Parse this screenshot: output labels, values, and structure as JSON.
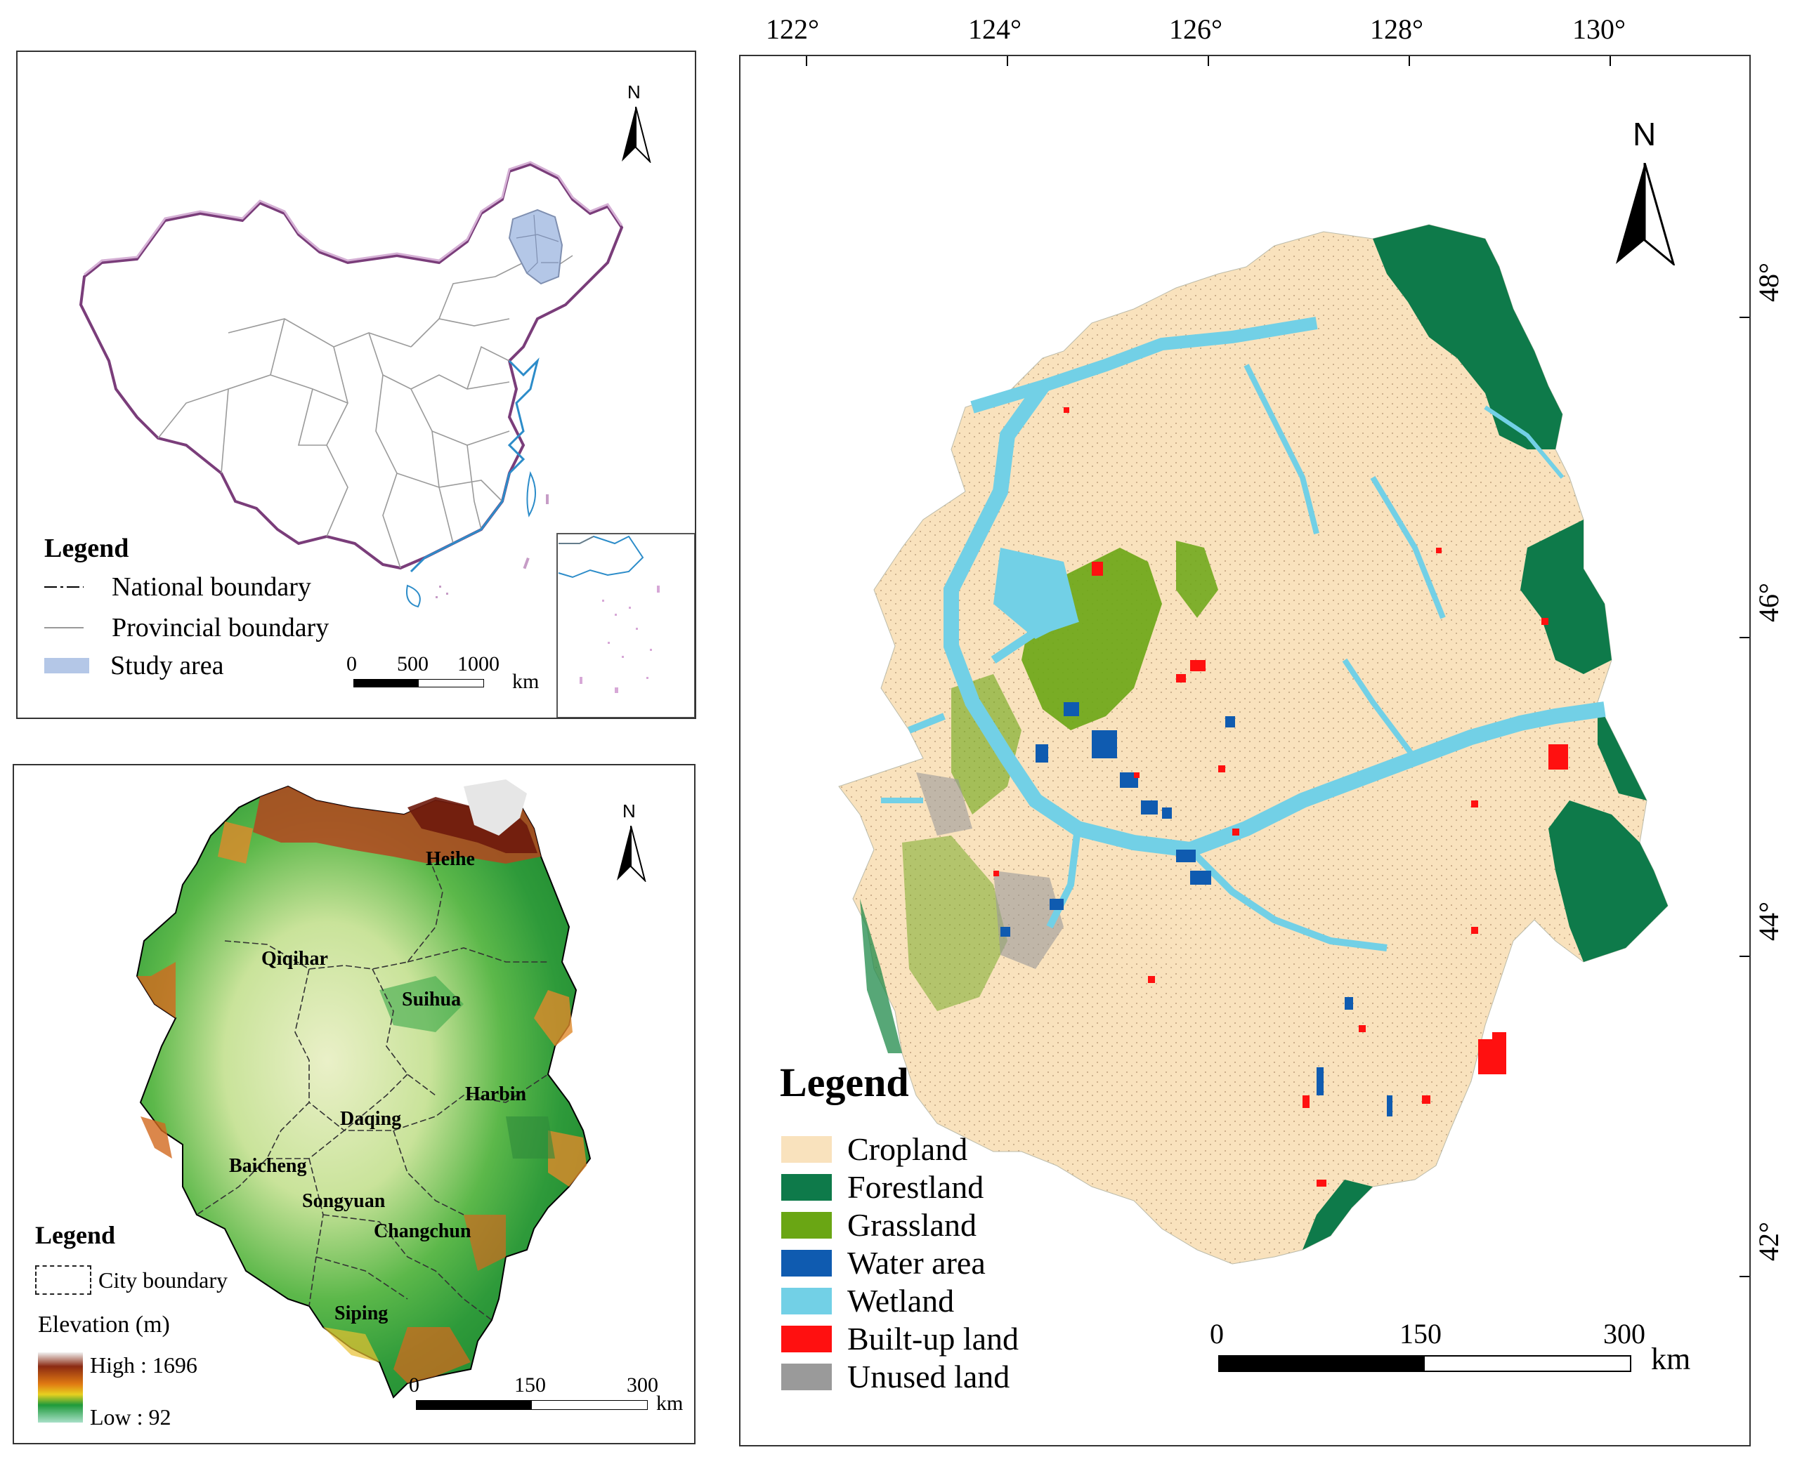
{
  "china_map": {
    "north": "N",
    "legend": {
      "title": "Legend",
      "items": [
        "National boundary",
        "Provincial boundary",
        "Study area"
      ]
    },
    "scale": {
      "ticks": [
        "0",
        "500",
        "1000"
      ],
      "unit": "km"
    },
    "colors": {
      "national": "#6b3a6b",
      "provincial": "#9a9a9a",
      "study_area": "#b4c7e7",
      "coast": "#2c8cc9"
    }
  },
  "elevation_map": {
    "north": "N",
    "cities": [
      "Heihe",
      "Qiqihar",
      "Suihua",
      "Harbin",
      "Daqing",
      "Baicheng",
      "Songyuan",
      "Changchun",
      "Siping"
    ],
    "legend": {
      "title": "Legend",
      "city_boundary": "City boundary",
      "elevation_title": "Elevation (m)",
      "high": "High : 1696",
      "low": "Low : 92"
    },
    "scale": {
      "ticks": [
        "0",
        "150",
        "300"
      ],
      "unit": "km"
    }
  },
  "landuse_map": {
    "north": "N",
    "lon_labels": [
      "122°",
      "124°",
      "126°",
      "128°",
      "130°"
    ],
    "lat_labels": [
      "48°",
      "46°",
      "44°",
      "42°"
    ],
    "legend": {
      "title": "Legend",
      "items": [
        {
          "label": "Cropland",
          "color": "#f9e2bd"
        },
        {
          "label": "Forestland",
          "color": "#0e7a4a"
        },
        {
          "label": "Grassland",
          "color": "#6aa614"
        },
        {
          "label": "Water area",
          "color": "#0f5bb0"
        },
        {
          "label": "Wetland",
          "color": "#72d0e6"
        },
        {
          "label": "Built-up land",
          "color": "#ff1010"
        },
        {
          "label": "Unused land",
          "color": "#9a9a9a"
        }
      ]
    },
    "scale": {
      "ticks": [
        "0",
        "150",
        "300"
      ],
      "unit": "km"
    }
  }
}
